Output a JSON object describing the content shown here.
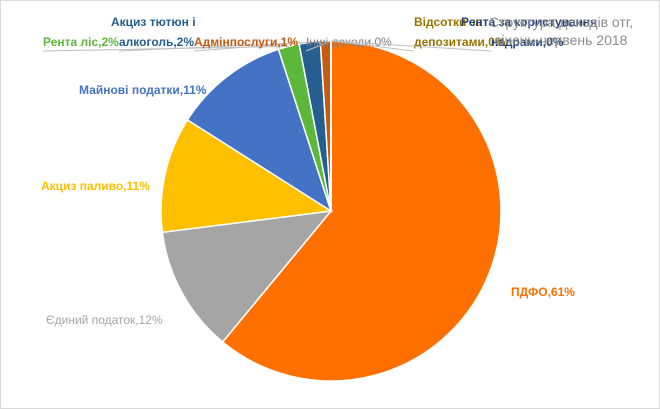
{
  "chart_data": {
    "type": "pie",
    "title": "Структура доходів отг, січень-червень 2018",
    "labels": [
      [
        "ПДФО,61%"
      ],
      [
        "Єдиний податок,12%"
      ],
      [
        "Акциз паливо,11%"
      ],
      [
        "Майнові податки,11%"
      ],
      [
        "Рента ліс,2%"
      ],
      [
        "Акциз тютюн і",
        "алкоголь,2%"
      ],
      [
        "Адмінпослуги,1%"
      ],
      [
        "Інші доходи,0%"
      ],
      [
        "Відсотки за",
        "депозитами,0%"
      ],
      [
        "Рента за користування",
        "надрами,0%"
      ]
    ],
    "values": [
      61,
      12,
      11,
      11,
      2,
      2,
      1,
      0,
      0,
      0
    ],
    "colors": [
      "#ff7000",
      "#a5a5a5",
      "#ffc000",
      "#4472c4",
      "#5cb83a",
      "#255e91",
      "#c55a11",
      "#7f7f7f",
      "#997300",
      "#264478"
    ]
  }
}
